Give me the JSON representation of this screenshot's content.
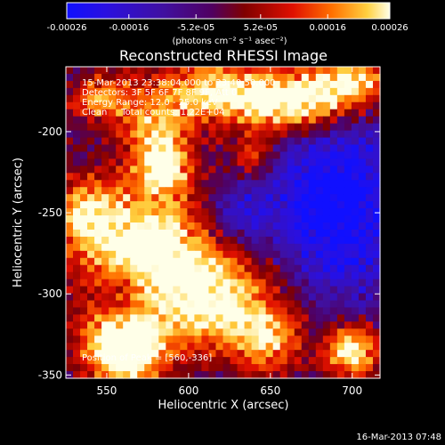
{
  "chart_data": {
    "type": "heatmap",
    "title": "Reconstructed RHESSI Image",
    "xlabel": "Heliocentric X (arcsec)",
    "ylabel": "Heliocentric Y (arcsec)",
    "xlim": [
      525,
      717
    ],
    "ylim": [
      -352,
      -160
    ],
    "x_ticks": [
      550,
      600,
      650,
      700
    ],
    "y_ticks": [
      -350,
      -300,
      -250,
      -200
    ],
    "colorbar": {
      "colormap": "rhessi-3",
      "range": [
        -0.00026,
        0.00026
      ],
      "tick_values": [
        -0.00026,
        -0.00016,
        -5.2e-05,
        5.2e-05,
        0.00016,
        0.00026
      ],
      "tick_labels": [
        "-0.00026",
        "-0.00016",
        "-5.2e-05",
        "5.2e-05",
        "0.00016",
        "0.00026"
      ],
      "unit_label": "(photons cm⁻² s⁻¹ asec⁻²)"
    },
    "annotations": [
      "15-Mar-2013 23:38:04.000 to 23:40:50.000",
      "Detectors: 3F 5F 6F 7F 8F 9F, Att 0",
      "Energy Range: 12.0 - 25.0 keV",
      "Clean     Total counts: 1.22E+04"
    ],
    "peak_label": "Position of Peak = [560,-336]",
    "peak": {
      "x": 560,
      "y": -336
    },
    "hot_regions": [
      {
        "x": 572,
        "y": -270,
        "sx": 30,
        "sy": 30,
        "amp": 0.9
      },
      {
        "x": 560,
        "y": -335,
        "sx": 18,
        "sy": 16,
        "amp": 1.0
      },
      {
        "x": 620,
        "y": -305,
        "sx": 28,
        "sy": 22,
        "amp": 0.75
      },
      {
        "x": 620,
        "y": -175,
        "sx": 35,
        "sy": 14,
        "amp": 0.75
      },
      {
        "x": 670,
        "y": -185,
        "sx": 25,
        "sy": 12,
        "amp": 0.7
      },
      {
        "x": 700,
        "y": -168,
        "sx": 20,
        "sy": 10,
        "amp": 0.7
      },
      {
        "x": 580,
        "y": -200,
        "sx": 15,
        "sy": 12,
        "amp": 0.55
      },
      {
        "x": 585,
        "y": -222,
        "sx": 12,
        "sy": 10,
        "amp": 0.6
      },
      {
        "x": 535,
        "y": -250,
        "sx": 12,
        "sy": 14,
        "amp": 0.5
      },
      {
        "x": 700,
        "y": -335,
        "sx": 12,
        "sy": 12,
        "amp": 0.85
      },
      {
        "x": 650,
        "y": -330,
        "sx": 15,
        "sy": 14,
        "amp": 0.55
      },
      {
        "x": 545,
        "y": -180,
        "sx": 14,
        "sy": 10,
        "amp": 0.5
      },
      {
        "x": 640,
        "y": -215,
        "sx": 10,
        "sy": 10,
        "amp": 0.45
      }
    ],
    "cold_regions": [
      {
        "x": 690,
        "y": -245,
        "sx": 30,
        "sy": 40,
        "amp": 0.65
      },
      {
        "x": 630,
        "y": -250,
        "sx": 14,
        "sy": 14,
        "amp": 0.35
      },
      {
        "x": 560,
        "y": -300,
        "sx": 10,
        "sy": 12,
        "amp": 0.3
      }
    ]
  },
  "footer": {
    "timestamp": "16-Mar-2013 07:48"
  }
}
